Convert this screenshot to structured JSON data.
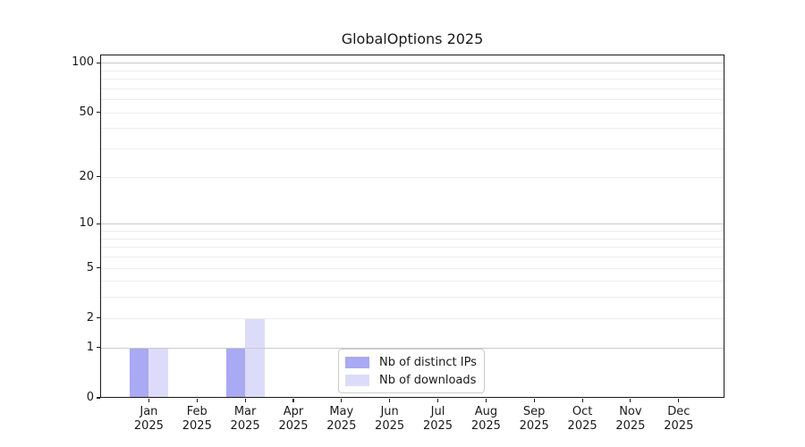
{
  "chart_data": {
    "type": "bar",
    "title": "GlobalOptions 2025",
    "categories": [
      "Jan 2025",
      "Feb 2025",
      "Mar 2025",
      "Apr 2025",
      "May 2025",
      "Jun 2025",
      "Jul 2025",
      "Aug 2025",
      "Sep 2025",
      "Oct 2025",
      "Nov 2025",
      "Dec 2025"
    ],
    "x_tick_labels": [
      {
        "month": "Jan",
        "year": "2025"
      },
      {
        "month": "Feb",
        "year": "2025"
      },
      {
        "month": "Mar",
        "year": "2025"
      },
      {
        "month": "Apr",
        "year": "2025"
      },
      {
        "month": "May",
        "year": "2025"
      },
      {
        "month": "Jun",
        "year": "2025"
      },
      {
        "month": "Jul",
        "year": "2025"
      },
      {
        "month": "Aug",
        "year": "2025"
      },
      {
        "month": "Sep",
        "year": "2025"
      },
      {
        "month": "Oct",
        "year": "2025"
      },
      {
        "month": "Nov",
        "year": "2025"
      },
      {
        "month": "Dec",
        "year": "2025"
      }
    ],
    "series": [
      {
        "name": "Nb of distinct IPs",
        "color": "#a9a9f4",
        "values": [
          1,
          0,
          1,
          0,
          0,
          0,
          0,
          0,
          0,
          0,
          0,
          0
        ]
      },
      {
        "name": "Nb of downloads",
        "color": "#dcdcfa",
        "values": [
          1,
          0,
          2,
          0,
          0,
          0,
          0,
          0,
          0,
          0,
          0,
          0
        ]
      }
    ],
    "y_axis": {
      "scale": "log10(1+v)",
      "ylim": [
        0,
        111
      ],
      "tick_values": [
        0,
        1,
        2,
        5,
        10,
        20,
        50,
        100
      ],
      "tick_labels": [
        "0",
        "1",
        "2",
        "5",
        "10",
        "20",
        "50",
        "100"
      ],
      "major_gridlines": [
        1,
        10,
        100
      ],
      "minor_gridlines": [
        2,
        3,
        4,
        5,
        6,
        7,
        8,
        9,
        20,
        30,
        40,
        50,
        60,
        70,
        80,
        90
      ]
    },
    "legend": {
      "position": "lower center"
    },
    "grid": true
  },
  "style": {
    "background": "#ffffff",
    "axis_color": "#1a1a1a",
    "text_color": "#1a1a1a",
    "major_grid_color": "#c9c9c9",
    "minor_grid_color": "#ededed",
    "legend_border_color": "#cccccc"
  }
}
